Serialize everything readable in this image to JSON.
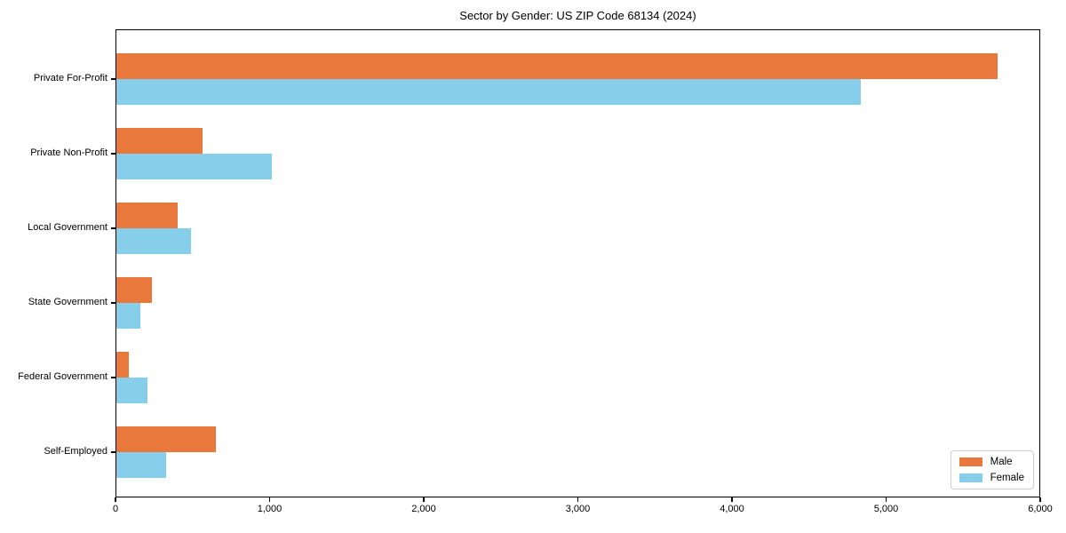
{
  "chart_data": {
    "type": "bar",
    "orientation": "horizontal",
    "title": "Sector by Gender: US ZIP Code 68134 (2024)",
    "categories": [
      "Private For-Profit",
      "Private Non-Profit",
      "Local Government",
      "State Government",
      "Federal Government",
      "Self-Employed"
    ],
    "series": [
      {
        "name": "Male",
        "color": "#E8783C",
        "values": [
          5720,
          556,
          398,
          230,
          82,
          645
        ]
      },
      {
        "name": "Female",
        "color": "#87CEEB",
        "values": [
          4830,
          1011,
          483,
          155,
          199,
          320
        ]
      }
    ],
    "xlabel": "",
    "ylabel": "",
    "xlim": [
      0,
      6000
    ],
    "x_ticks": [
      0,
      1000,
      2000,
      3000,
      4000,
      5000,
      6000
    ],
    "x_tick_labels": [
      "0",
      "1,000",
      "2,000",
      "3,000",
      "4,000",
      "5,000",
      "6,000"
    ],
    "grid": false,
    "legend_position": "lower right",
    "background_color": "#ffffff",
    "spine_color": "#000000"
  }
}
